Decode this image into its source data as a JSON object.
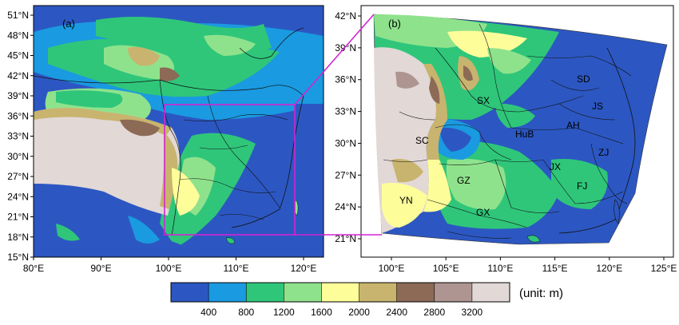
{
  "panels": [
    {
      "label": "(a)",
      "lat_ticks": [
        "51°N",
        "48°N",
        "45°N",
        "42°N",
        "39°N",
        "36°N",
        "33°N",
        "30°N",
        "27°N",
        "24°N",
        "21°N",
        "18°N",
        "15°N"
      ],
      "lon_ticks": [
        "80°E",
        "90°E",
        "100°E",
        "110°E",
        "120°E"
      ]
    },
    {
      "label": "(b)",
      "lat_ticks": [
        "42°N",
        "39°N",
        "36°N",
        "33°N",
        "30°N",
        "27°N",
        "24°N",
        "21°N"
      ],
      "lon_ticks": [
        "100°E",
        "105°E",
        "110°E",
        "115°E",
        "120°E",
        "125°E"
      ],
      "provinces": [
        "SD",
        "SX",
        "JS",
        "AH",
        "HuB",
        "SC",
        "ZJ",
        "JX",
        "GZ",
        "FJ",
        "YN",
        "GX"
      ]
    }
  ],
  "colorbar": {
    "ticks": [
      "400",
      "800",
      "1200",
      "1600",
      "2000",
      "2400",
      "2800",
      "3200"
    ],
    "unit": "(unit: m)",
    "colors": [
      "#2c57c2",
      "#1a9ae0",
      "#2fc67a",
      "#8fe28c",
      "#fdfd9a",
      "#c8b46e",
      "#8c6a56",
      "#ae9591",
      "#e2d8d6"
    ]
  },
  "colors": {
    "zoom_box": "#d424d4",
    "water": "#2c57c2"
  }
}
